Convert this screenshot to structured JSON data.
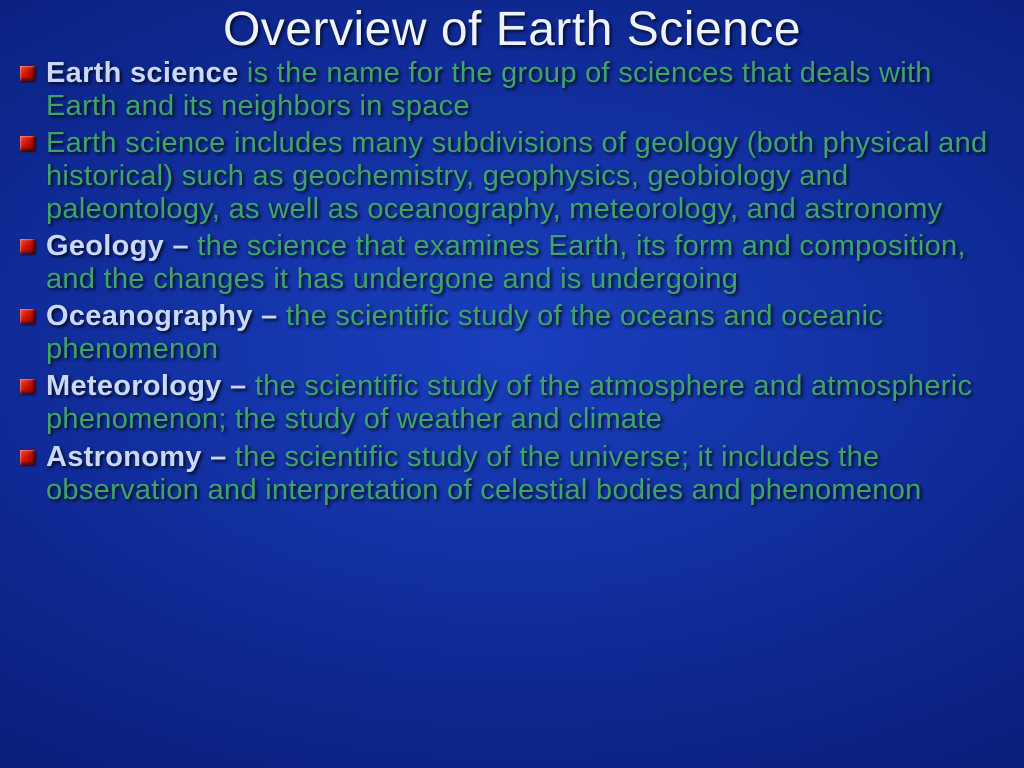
{
  "slide": {
    "title": "Overview of Earth Science",
    "title_fontsize": 48,
    "body_fontsize": 29,
    "background_gradient": [
      "#1a3fbf",
      "#0a2080",
      "#041050"
    ],
    "title_color": "#eef3ff",
    "body_color": "#3fa36a",
    "term_color": "#c9d8ff",
    "bullet_color_gradient": [
      "#ff4a3a",
      "#c41200",
      "#7d0800"
    ],
    "bullets": [
      {
        "term": "Earth science",
        "def": " is the name for the group of sciences that deals with Earth and its neighbors in space"
      },
      {
        "term": "",
        "def": "Earth science includes many subdivisions of geology (both physical and historical) such as geochemistry, geophysics, geobiology and paleontology, as well as oceanography, meteorology, and astronomy"
      },
      {
        "term": "Geology – ",
        "def": "the science that examines Earth, its form and composition, and the changes it has undergone and is undergoing"
      },
      {
        "term": "Oceanography – ",
        "def": "the scientific study of the oceans and oceanic phenomenon"
      },
      {
        "term": "Meteorology – ",
        "def": "the scientific study of the atmosphere and atmospheric phenomenon; the study of weather and climate"
      },
      {
        "term": "Astronomy – ",
        "def": "the scientific study of the universe; it includes the observation and interpretation of celestial bodies and phenomenon"
      }
    ]
  }
}
